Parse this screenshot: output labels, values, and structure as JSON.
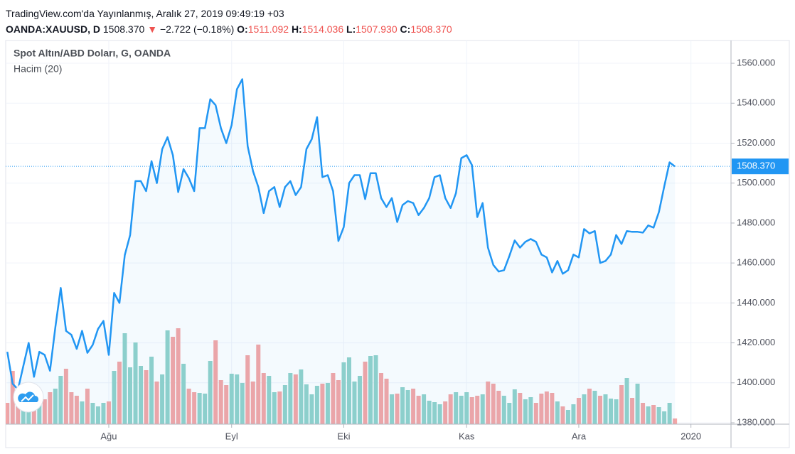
{
  "header": {
    "published": "TradingView.com'da Yayınlanmış, Aralık 27, 2019 09:49:19 +03",
    "symbol": "OANDA:XAUUSD, D",
    "price": "1508.370",
    "arrow": "▼",
    "change": "−2.722 (−0.18%)",
    "ohlc": [
      {
        "label": "O:",
        "value": "1511.092"
      },
      {
        "label": "H:",
        "value": "1514.036"
      },
      {
        "label": "L:",
        "value": "1507.930"
      },
      {
        "label": "C:",
        "value": "1508.370"
      }
    ]
  },
  "chart_data": {
    "type": "line",
    "title": "Spot Altın/ABD Doları, G, OANDA",
    "subtitle": "Hacim (20)",
    "xlim": [
      -0.3,
      135.5
    ],
    "xticks": [
      {
        "value": 19,
        "label": "Ağu"
      },
      {
        "value": 42,
        "label": "Eyl"
      },
      {
        "value": 63,
        "label": "Eki"
      },
      {
        "value": 86,
        "label": "Kas"
      },
      {
        "value": 107,
        "label": "Ara"
      },
      {
        "value": 128,
        "label": "2020"
      }
    ],
    "ylim": [
      1379.3,
      1571.4
    ],
    "yticks": [
      {
        "value": 1380,
        "label": "1380.000"
      },
      {
        "value": 1400,
        "label": "1400.000"
      },
      {
        "value": 1420,
        "label": "1420.000"
      },
      {
        "value": 1440,
        "label": "1440.000"
      },
      {
        "value": 1460,
        "label": "1460.000"
      },
      {
        "value": 1480,
        "label": "1480.000"
      },
      {
        "value": 1500,
        "label": "1500.000"
      },
      {
        "value": 1520,
        "label": "1520.000"
      },
      {
        "value": 1540,
        "label": "1540.000"
      },
      {
        "value": 1560,
        "label": "1560.000"
      }
    ],
    "y2lim": [
      0,
      540
    ],
    "grid": true,
    "last_price": {
      "value": 1508.37,
      "label": "1508.370",
      "color": "#2196f3"
    },
    "series": [
      {
        "name": "XAUUSD",
        "color": "#2196f3",
        "values": [
          1415.5,
          1399.5,
          1396.7,
          1408.4,
          1420,
          1403,
          1415.5,
          1414,
          1406,
          1428,
          1447.5,
          1426,
          1424,
          1417,
          1426,
          1415,
          1419,
          1427,
          1431,
          1414,
          1445,
          1440,
          1464,
          1474,
          1501,
          1501,
          1496,
          1511,
          1500,
          1517,
          1523,
          1514,
          1495.5,
          1507,
          1502.5,
          1496,
          1527.5,
          1527.5,
          1542,
          1539,
          1527.5,
          1520,
          1529,
          1547,
          1552,
          1518.5,
          1506,
          1498,
          1485,
          1496,
          1498,
          1488,
          1498,
          1501,
          1494,
          1498,
          1517,
          1522,
          1533,
          1503,
          1504,
          1496,
          1471,
          1478,
          1500,
          1504,
          1504,
          1492,
          1505,
          1505,
          1492.5,
          1488,
          1492.5,
          1480.5,
          1489,
          1491,
          1490,
          1484,
          1487.5,
          1492.5,
          1503,
          1504,
          1492.5,
          1487.5,
          1495,
          1512.5,
          1514,
          1509,
          1483,
          1490,
          1467.7,
          1459,
          1455.7,
          1456.4,
          1463.5,
          1471.3,
          1467.7,
          1470.6,
          1472,
          1470.6,
          1464.2,
          1462.8,
          1455.3,
          1461,
          1454.6,
          1456.4,
          1464.2,
          1462.8,
          1477,
          1474.8,
          1476,
          1460,
          1461,
          1464.2,
          1474,
          1469.5,
          1476,
          1475.6,
          1475.6,
          1475.2,
          1478.8,
          1477.7,
          1485.5,
          1498.3,
          1510.4,
          1508.37
        ]
      },
      {
        "name": "Hacim",
        "axis": "y2",
        "up_color": "#92d2cb",
        "down_color": "#f5a6a6",
        "values": [
          30,
          75,
          25,
          45,
          40,
          35,
          30,
          35,
          45,
          50,
          68,
          78,
          45,
          40,
          32,
          50,
          30,
          25,
          30,
          32,
          75,
          88,
          128,
          80,
          115,
          82,
          76,
          95,
          60,
          70,
          132,
          123,
          135,
          85,
          50,
          45,
          44,
          43,
          89,
          118,
          62,
          55,
          71,
          70,
          58,
          97,
          60,
          112,
          72,
          68,
          45,
          46,
          55,
          72,
          70,
          77,
          56,
          42,
          54,
          57,
          58,
          72,
          62,
          87,
          94,
          60,
          68,
          88,
          96,
          97,
          72,
          64,
          42,
          43,
          52,
          48,
          50,
          40,
          42,
          33,
          31,
          28,
          32,
          42,
          45,
          40,
          45,
          38,
          40,
          42,
          60,
          57,
          47,
          40,
          30,
          49,
          44,
          35,
          38,
          30,
          43,
          46,
          44,
          32,
          25,
          20,
          28,
          37,
          42,
          50,
          47,
          40,
          42,
          36,
          35,
          55,
          65,
          37,
          57,
          30,
          25,
          27,
          24,
          18,
          30,
          8
        ]
      }
    ]
  }
}
